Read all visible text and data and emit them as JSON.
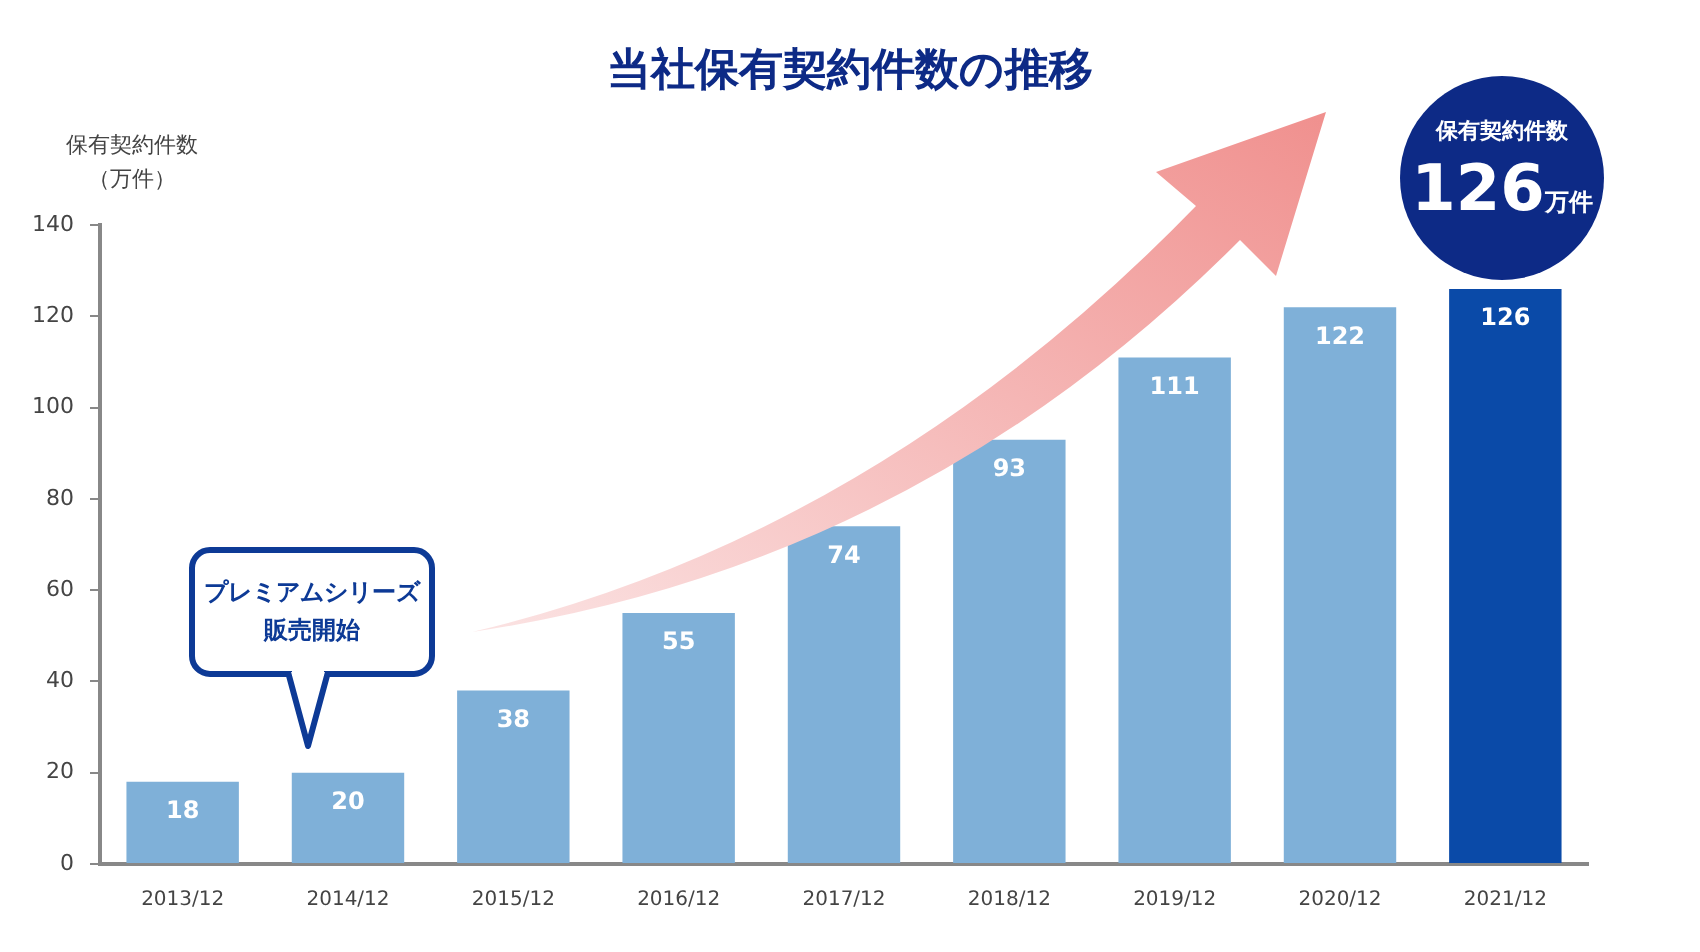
{
  "chart_data": {
    "type": "bar",
    "title": "当社保有契約件数の推移",
    "ylabel": "保有契約件数（万件）",
    "categories": [
      "2013/12",
      "2014/12",
      "2015/12",
      "2016/12",
      "2017/12",
      "2018/12",
      "2019/12",
      "2020/12",
      "2021/12"
    ],
    "values": [
      18,
      20,
      38,
      55,
      74,
      93,
      111,
      122,
      126
    ],
    "colors": [
      "#7fb0d8",
      "#7fb0d8",
      "#7fb0d8",
      "#7fb0d8",
      "#7fb0d8",
      "#7fb0d8",
      "#7fb0d8",
      "#7fb0d8",
      "#0a4aa8"
    ],
    "ylim": [
      0,
      140
    ],
    "yticks": [
      0,
      20,
      40,
      60,
      80,
      100,
      120,
      140
    ],
    "grid": false,
    "legend": false,
    "data_labels": true,
    "annotations": [
      "プレミアムシリーズ販売開始",
      "保有契約件数",
      "126万件"
    ]
  }
}
